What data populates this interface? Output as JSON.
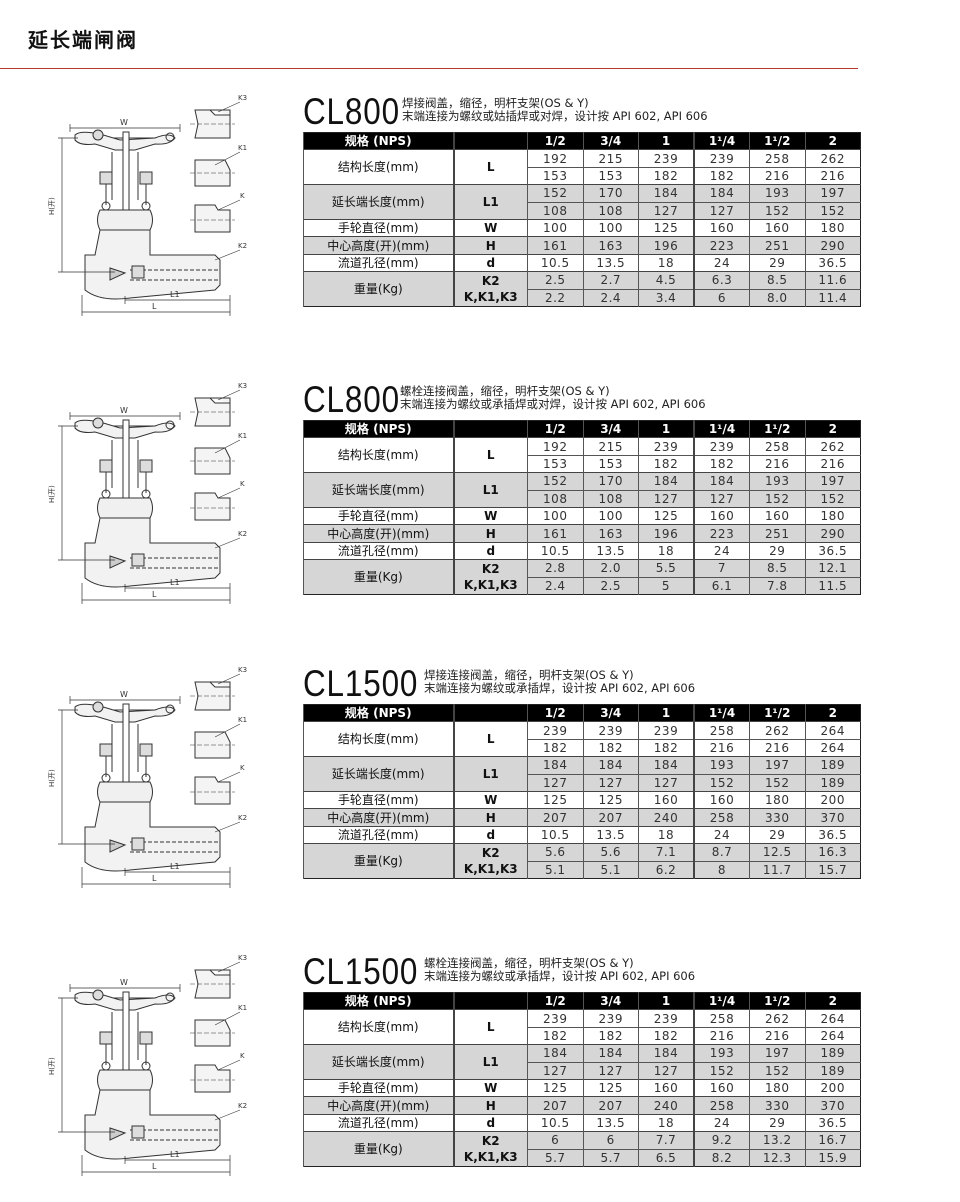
{
  "page": {
    "title": "延长端闸阀",
    "accent_color": "#b33a2a"
  },
  "diagram_labels": {
    "w": "W",
    "h": "H(开)",
    "l1": "L1",
    "l": "L",
    "k3": "K3",
    "k1": "K1",
    "k": "K",
    "k2": "K2"
  },
  "columns": {
    "spec": "规格 (NPS)",
    "sizes": [
      "1/2",
      "3/4",
      "1",
      "1¹/4",
      "1¹/2",
      "2"
    ]
  },
  "row_labels": {
    "length": "结构长度(mm)",
    "ext_length": "延长端长度(mm)",
    "handwheel": "手轮直径(mm)",
    "center_height": "中心高度(开)(mm)",
    "bore": "流道孔径(mm)",
    "weight": "重量(Kg)"
  },
  "symbols": {
    "length": "L",
    "ext_length": "L1",
    "handwheel": "W",
    "center_height": "H",
    "bore": "d",
    "weight_k2": "K2",
    "weight_k": "K,K1,K3"
  },
  "sections": [
    {
      "model": "CL800",
      "desc1": "焊接阀盖，缩径，明杆支架(OS & Y)",
      "desc2": "末端连接为螺纹或姑插焊或对焊，设计按 API 602, API 606",
      "rows": {
        "length_a": [
          "192",
          "215",
          "239",
          "239",
          "258",
          "262"
        ],
        "length_b": [
          "153",
          "153",
          "182",
          "182",
          "216",
          "216"
        ],
        "ext_a": [
          "152",
          "170",
          "184",
          "184",
          "193",
          "197"
        ],
        "ext_b": [
          "108",
          "108",
          "127",
          "127",
          "152",
          "152"
        ],
        "handwheel": [
          "100",
          "100",
          "125",
          "160",
          "160",
          "180"
        ],
        "center_height": [
          "161",
          "163",
          "196",
          "223",
          "251",
          "290"
        ],
        "bore": [
          "10.5",
          "13.5",
          "18",
          "24",
          "29",
          "36.5"
        ],
        "weight_k2": [
          "2.5",
          "2.7",
          "4.5",
          "6.3",
          "8.5",
          "11.6"
        ],
        "weight_k": [
          "2.2",
          "2.4",
          "3.4",
          "6",
          "8.0",
          "11.4"
        ]
      }
    },
    {
      "model": "CL800",
      "desc1": "螺栓连接阀盖，缩径，明杆支架(OS & Y)",
      "desc2": "末端连接为螺纹或承插焊或对焊，设计按 API 602, API 606",
      "rows": {
        "length_a": [
          "192",
          "215",
          "239",
          "239",
          "258",
          "262"
        ],
        "length_b": [
          "153",
          "153",
          "182",
          "182",
          "216",
          "216"
        ],
        "ext_a": [
          "152",
          "170",
          "184",
          "184",
          "193",
          "197"
        ],
        "ext_b": [
          "108",
          "108",
          "127",
          "127",
          "152",
          "152"
        ],
        "handwheel": [
          "100",
          "100",
          "125",
          "160",
          "160",
          "180"
        ],
        "center_height": [
          "161",
          "163",
          "196",
          "223",
          "251",
          "290"
        ],
        "bore": [
          "10.5",
          "13.5",
          "18",
          "24",
          "29",
          "36.5"
        ],
        "weight_k2": [
          "2.8",
          "2.0",
          "5.5",
          "7",
          "8.5",
          "12.1"
        ],
        "weight_k": [
          "2.4",
          "2.5",
          "5",
          "6.1",
          "7.8",
          "11.5"
        ]
      }
    },
    {
      "model": "CL1500",
      "desc1": "焊接连接阀盖，缩径，明杆支架(OS & Y)",
      "desc2": "末端连接为螺纹或承插焊，设计按 API 602, API 606",
      "rows": {
        "length_a": [
          "239",
          "239",
          "239",
          "258",
          "262",
          "264"
        ],
        "length_b": [
          "182",
          "182",
          "182",
          "216",
          "216",
          "264"
        ],
        "ext_a": [
          "184",
          "184",
          "184",
          "193",
          "197",
          "189"
        ],
        "ext_b": [
          "127",
          "127",
          "127",
          "152",
          "152",
          "189"
        ],
        "handwheel": [
          "125",
          "125",
          "160",
          "160",
          "180",
          "200"
        ],
        "center_height": [
          "207",
          "207",
          "240",
          "258",
          "330",
          "370"
        ],
        "bore": [
          "10.5",
          "13.5",
          "18",
          "24",
          "29",
          "36.5"
        ],
        "weight_k2": [
          "5.6",
          "5.6",
          "7.1",
          "8.7",
          "12.5",
          "16.3"
        ],
        "weight_k": [
          "5.1",
          "5.1",
          "6.2",
          "8",
          "11.7",
          "15.7"
        ]
      }
    },
    {
      "model": "CL1500",
      "desc1": "螺栓连接阀盖，缩径，明杆支架(OS & Y)",
      "desc2": "末端连接为螺纹或承插焊，设计按 API 602, API 606",
      "rows": {
        "length_a": [
          "239",
          "239",
          "239",
          "258",
          "262",
          "264"
        ],
        "length_b": [
          "182",
          "182",
          "182",
          "216",
          "216",
          "264"
        ],
        "ext_a": [
          "184",
          "184",
          "184",
          "193",
          "197",
          "189"
        ],
        "ext_b": [
          "127",
          "127",
          "127",
          "152",
          "152",
          "189"
        ],
        "handwheel": [
          "125",
          "125",
          "160",
          "160",
          "180",
          "200"
        ],
        "center_height": [
          "207",
          "207",
          "240",
          "258",
          "330",
          "370"
        ],
        "bore": [
          "10.5",
          "13.5",
          "18",
          "24",
          "29",
          "36.5"
        ],
        "weight_k2": [
          "6",
          "6",
          "7.7",
          "9.2",
          "13.2",
          "16.7"
        ],
        "weight_k": [
          "5.7",
          "5.7",
          "6.5",
          "8.2",
          "12.3",
          "15.9"
        ]
      }
    }
  ]
}
